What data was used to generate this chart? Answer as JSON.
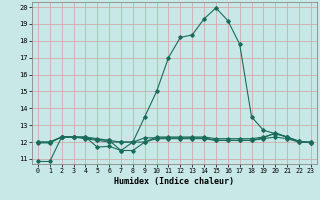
{
  "xlabel": "Humidex (Indice chaleur)",
  "xlim": [
    -0.5,
    23.5
  ],
  "ylim": [
    10.7,
    20.3
  ],
  "yticks": [
    11,
    12,
    13,
    14,
    15,
    16,
    17,
    18,
    19,
    20
  ],
  "xticks": [
    0,
    1,
    2,
    3,
    4,
    5,
    6,
    7,
    8,
    9,
    10,
    11,
    12,
    13,
    14,
    15,
    16,
    17,
    18,
    19,
    20,
    21,
    22,
    23
  ],
  "bg_color": "#c8e8e8",
  "plot_bg_color": "#c8e8e8",
  "line_color": "#1a6b5a",
  "grid_color": "#d4a0a0",
  "series": [
    {
      "x": [
        0,
        1,
        2,
        3,
        4,
        5,
        6,
        7,
        8,
        9,
        10,
        11,
        12,
        13,
        14,
        15,
        16,
        17,
        18,
        19,
        20,
        21,
        22,
        23
      ],
      "y": [
        10.85,
        10.85,
        12.3,
        12.3,
        12.3,
        11.7,
        11.75,
        11.5,
        12.0,
        13.5,
        15.0,
        17.0,
        18.2,
        18.35,
        19.3,
        19.95,
        19.2,
        17.8,
        13.5,
        12.7,
        12.5,
        12.3,
        12.05,
        11.95
      ]
    },
    {
      "x": [
        0,
        1,
        2,
        3,
        4,
        5,
        6,
        7,
        8,
        9,
        10,
        11,
        12,
        13,
        14,
        15,
        16,
        17,
        18,
        19,
        20,
        21,
        22,
        23
      ],
      "y": [
        11.95,
        11.95,
        12.3,
        12.3,
        12.25,
        12.15,
        12.1,
        12.0,
        12.0,
        12.25,
        12.25,
        12.25,
        12.25,
        12.25,
        12.25,
        12.1,
        12.1,
        12.1,
        12.1,
        12.25,
        12.55,
        12.3,
        12.05,
        11.95
      ]
    },
    {
      "x": [
        0,
        1,
        2,
        3,
        4,
        5,
        6,
        7,
        8,
        9,
        10,
        11,
        12,
        13,
        14,
        15,
        16,
        17,
        18,
        19,
        20,
        21,
        22,
        23
      ],
      "y": [
        12.0,
        12.0,
        12.3,
        12.3,
        12.3,
        12.2,
        12.1,
        11.5,
        11.5,
        12.0,
        12.3,
        12.3,
        12.3,
        12.3,
        12.3,
        12.2,
        12.2,
        12.2,
        12.2,
        12.3,
        12.5,
        12.3,
        12.0,
        12.0
      ]
    },
    {
      "x": [
        0,
        1,
        2,
        3,
        4,
        5,
        6,
        7,
        8,
        9,
        10,
        11,
        12,
        13,
        14,
        15,
        16,
        17,
        18,
        19,
        20,
        21,
        22,
        23
      ],
      "y": [
        12.0,
        12.0,
        12.3,
        12.3,
        12.2,
        12.1,
        12.0,
        12.0,
        12.0,
        12.0,
        12.2,
        12.2,
        12.2,
        12.2,
        12.2,
        12.1,
        12.1,
        12.1,
        12.1,
        12.2,
        12.3,
        12.2,
        12.0,
        12.0
      ]
    }
  ]
}
